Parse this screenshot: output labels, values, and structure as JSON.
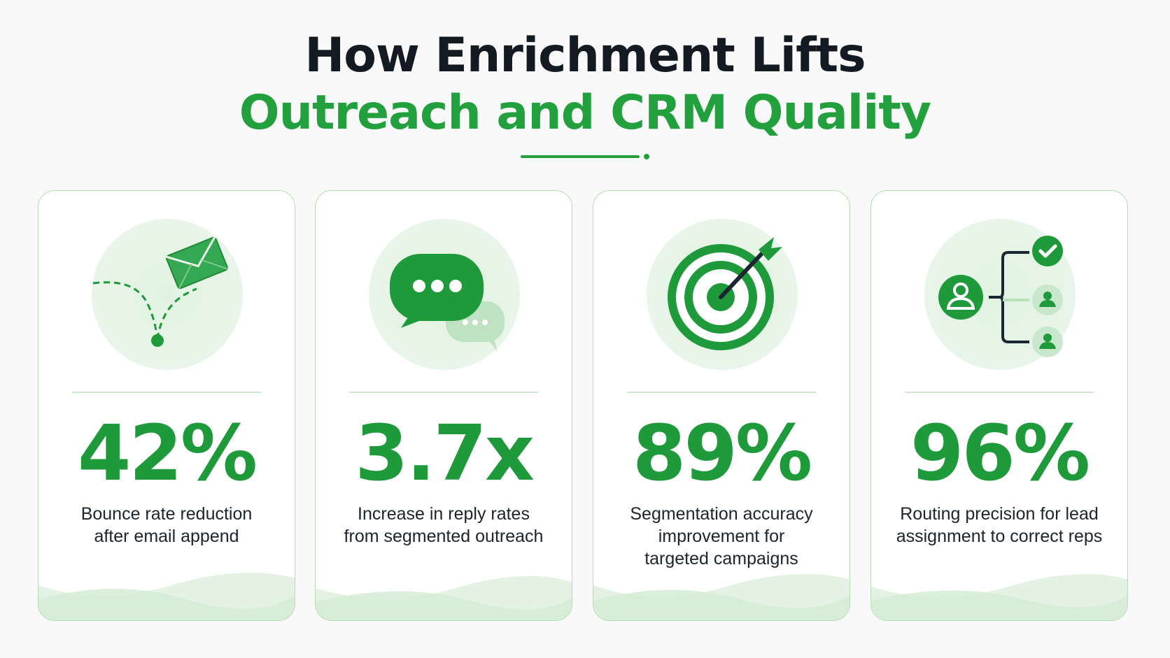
{
  "header": {
    "title_line1": "How Enrichment Lifts",
    "title_line2": "Outreach and CRM Quality"
  },
  "colors": {
    "accent": "#22a03d",
    "title_dark": "#141a22",
    "card_border": "#b6dcb6",
    "icon_bg": "#e5f4e5"
  },
  "cards": [
    {
      "icon": "email-bounce-icon",
      "stat": "42%",
      "description_lines": [
        "Bounce rate reduction",
        "after email append"
      ]
    },
    {
      "icon": "chat-bubbles-icon",
      "stat": "3.7x",
      "description_lines": [
        "Increase in reply rates",
        "from segmented outreach"
      ]
    },
    {
      "icon": "target-icon",
      "stat": "89%",
      "description_lines": [
        "Segmentation accuracy",
        "improvement for",
        "targeted campaigns"
      ]
    },
    {
      "icon": "lead-routing-icon",
      "stat": "96%",
      "description_lines": [
        "Routing precision for lead",
        "assignment to correct reps"
      ]
    }
  ]
}
